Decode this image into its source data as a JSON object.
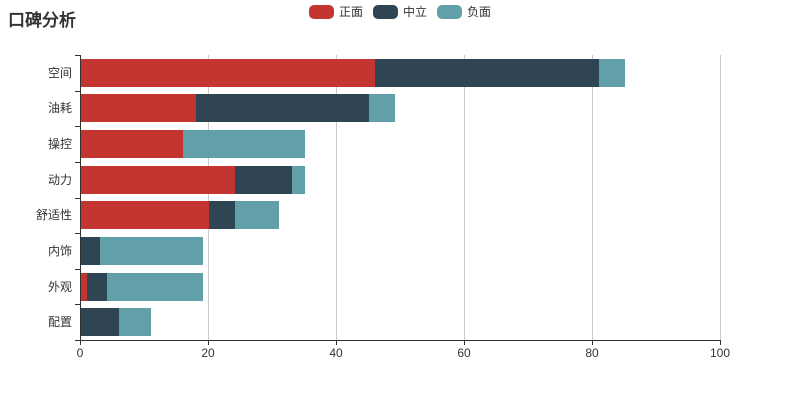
{
  "page": {
    "background": "#ffffff"
  },
  "chart_data": {
    "type": "bar",
    "orientation": "horizontal",
    "stacked": true,
    "title": "口碑分析",
    "categories": [
      "空间",
      "油耗",
      "操控",
      "动力",
      "舒适性",
      "内饰",
      "外观",
      "配置"
    ],
    "series": [
      {
        "name": "正面",
        "color": "#c23531",
        "values": [
          46,
          18,
          16,
          24,
          20,
          0,
          1,
          0
        ]
      },
      {
        "name": "中立",
        "color": "#2f4554",
        "values": [
          35,
          27,
          0,
          9,
          4,
          3,
          3,
          6
        ]
      },
      {
        "name": "负面",
        "color": "#61a0a8",
        "values": [
          4,
          4,
          19,
          2,
          7,
          16,
          15,
          5
        ]
      }
    ],
    "totals": [
      85,
      49,
      35,
      35,
      31,
      19,
      19,
      11
    ],
    "xlim": [
      0,
      100
    ],
    "x_ticks": [
      0,
      20,
      40,
      60,
      80,
      100
    ],
    "grid": true,
    "legend_position": "top-center",
    "colors": {
      "axis": "#333333",
      "gridline": "#cccccc",
      "label": "#333333"
    }
  }
}
